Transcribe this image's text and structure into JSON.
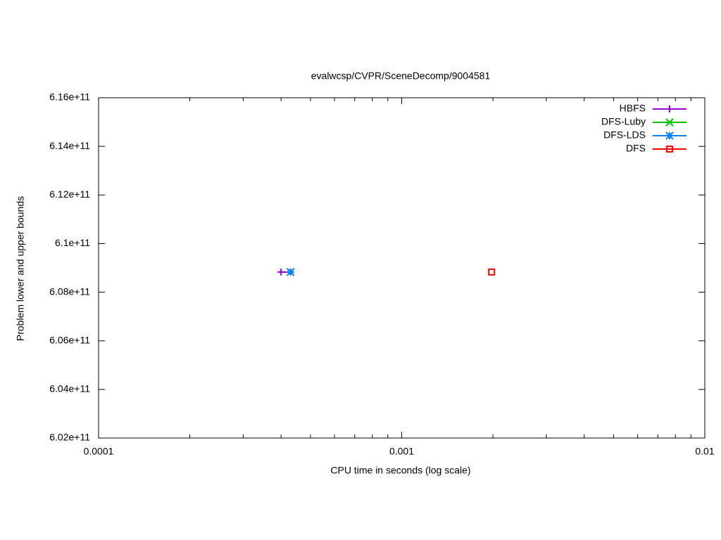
{
  "chart_data": {
    "type": "line",
    "title": "evalwcsp/CVPR/SceneDecomp/9004581",
    "x_label": "CPU time in seconds (log scale)",
    "y_label": "Problem lower and upper bounds",
    "xscale": "log",
    "xlim": [
      0.0001,
      0.01
    ],
    "xticks": [
      0.0001,
      0.001,
      0.01
    ],
    "ylim": [
      602000000000,
      616000000000
    ],
    "yticks": [
      {
        "value": 602000000000,
        "label": "6.02e+11"
      },
      {
        "value": 604000000000,
        "label": "6.04e+11"
      },
      {
        "value": 606000000000,
        "label": "6.06e+11"
      },
      {
        "value": 608000000000,
        "label": "6.08e+11"
      },
      {
        "value": 610000000000,
        "label": "6.1e+11"
      },
      {
        "value": 612000000000,
        "label": "6.12e+11"
      },
      {
        "value": 614000000000,
        "label": "6.14e+11"
      },
      {
        "value": 616000000000,
        "label": "6.16e+11"
      }
    ],
    "legend": "top-right",
    "series": [
      {
        "name": "HBFS",
        "color": "#9400d3",
        "marker": "plus",
        "x": [
          0.0004,
          0.00043
        ],
        "values": [
          608830000000,
          608830000000
        ]
      },
      {
        "name": "DFS-Luby",
        "color": "#00c000",
        "marker": "cross",
        "x": [
          0.00043
        ],
        "values": [
          608830000000
        ]
      },
      {
        "name": "DFS-LDS",
        "color": "#0080ff",
        "marker": "star",
        "x": [
          0.00043
        ],
        "values": [
          608830000000
        ]
      },
      {
        "name": "DFS",
        "color": "#ff0000",
        "marker": "square",
        "x": [
          0.00198
        ],
        "values": [
          608830000000
        ]
      }
    ]
  }
}
